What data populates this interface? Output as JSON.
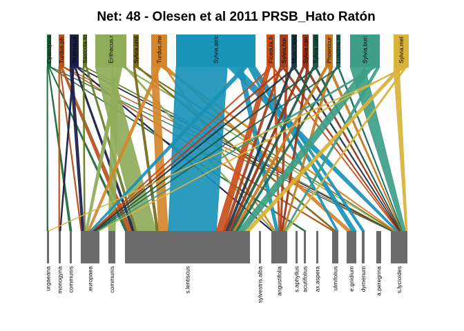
{
  "title": "Net: 48 - Olesen et al 2011 PRSB_Hato Ratón",
  "colors": {
    "lower_bar": "#6b6b6b",
    "background": "#ffffff"
  },
  "higher": [
    {
      "label": "Cyanopica",
      "color": "#1f6b3a"
    },
    {
      "label": "Turdus.ph",
      "color": "#b5541f"
    },
    {
      "label": "Sturnus.ur",
      "color": "#1b1f4a"
    },
    {
      "label": "Saxicola.to",
      "color": "#6b7d2a"
    },
    {
      "label": "Erithacus.r",
      "color": "#8fad5a"
    },
    {
      "label": "Sylvia.und",
      "color": "#7a6a1a"
    },
    {
      "label": "Turdus.me",
      "color": "#d4862a"
    },
    {
      "label": "Sylvia.atric",
      "color": "#1a93b8"
    },
    {
      "label": "Ficedula.h",
      "color": "#c94f1a"
    },
    {
      "label": "Sylvia.hor",
      "color": "#a83f1c"
    },
    {
      "label": "Muscicapa",
      "color": "#1d3a4a"
    },
    {
      "label": "Sylvia.can",
      "color": "#9b3418"
    },
    {
      "label": "Sylvia.com",
      "color": "#1d5a4a"
    },
    {
      "label": "Phoenicur",
      "color": "#c77a1f"
    },
    {
      "label": "Luscinia.m",
      "color": "#1c6a5a"
    },
    {
      "label": "Sylvia.bori",
      "color": "#3e9e86"
    },
    {
      "label": "Sylvia.mel",
      "color": "#d8b23a"
    }
  ],
  "lower": [
    {
      "label": "urgaeana"
    },
    {
      "label": "monogyna"
    },
    {
      "label": "communis"
    },
    {
      "label": ".europaea"
    },
    {
      "label": "communis"
    },
    {
      "label": "s.lentiscus"
    },
    {
      "label": "sylvestris.alba"
    },
    {
      "label": "angustifolia"
    },
    {
      "label": "s.aphyllus"
    },
    {
      "label": "acutifolius"
    },
    {
      "label": "ax.aspera"
    },
    {
      "label": "ulmifolius"
    },
    {
      "label": "e.gnidium"
    },
    {
      "label": "dymenum"
    },
    {
      "label": "a.peregrina"
    },
    {
      "label": "s.lycioides"
    }
  ]
}
